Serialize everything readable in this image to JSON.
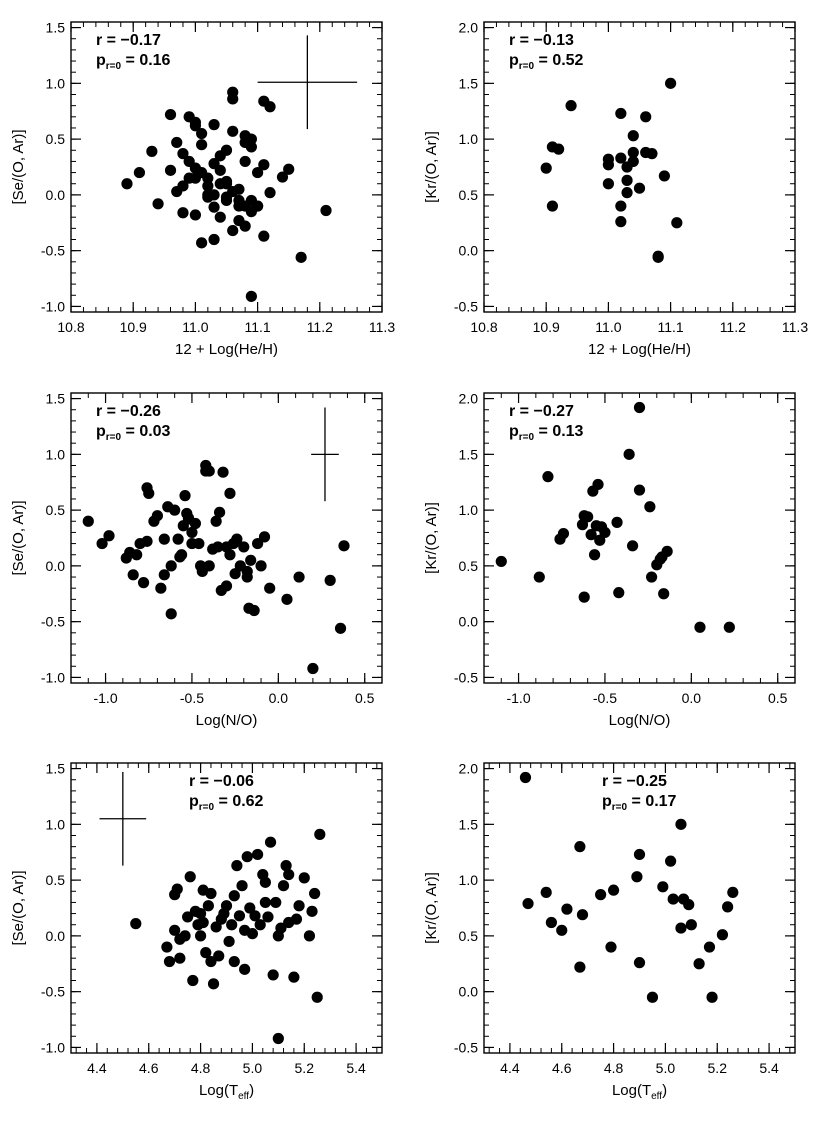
{
  "chart_data": [
    {
      "type": "scatter",
      "id": "se-vs-he",
      "xlabel": "12 + Log(He/H)",
      "ylabel": "[Se/(O, Ar)]",
      "xlim": [
        10.8,
        11.3
      ],
      "ylim": [
        -1.05,
        1.55
      ],
      "xticks": [
        "10.8",
        "10.9",
        "11.0",
        "11.1",
        "11.2",
        "11.3"
      ],
      "yticks": [
        "-1.0",
        "-0.5",
        "0.0",
        "0.5",
        "1.0",
        "1.5"
      ],
      "stats": {
        "r_label": "r = ",
        "r_value": "−0.17",
        "p_label": "p",
        "p_sub": "r=0",
        "p_value": " = 0.16",
        "position": "top-left"
      },
      "errorbar": {
        "x": 11.18,
        "y": 1.01,
        "xerr": 0.08,
        "yerr": 0.42
      },
      "x": [
        10.89,
        10.91,
        10.93,
        10.94,
        10.96,
        10.96,
        10.97,
        10.98,
        10.99,
        11.0,
        11.0,
        11.01,
        11.02,
        11.03,
        11.04,
        11.05,
        11.06,
        11.06,
        11.07,
        11.08,
        11.08,
        11.09,
        11.1,
        11.11,
        11.12,
        11.15,
        10.99,
        11.0,
        11.01,
        11.02,
        11.03,
        11.04,
        11.05,
        11.06,
        11.07,
        11.08,
        11.09,
        11.1,
        11.11,
        10.97,
        10.98,
        10.99,
        11.0,
        11.01,
        11.02,
        11.03,
        11.04,
        11.05,
        11.06,
        11.07,
        11.08,
        11.09,
        11.1,
        11.02,
        11.03,
        11.04,
        11.05,
        11.06,
        11.07,
        11.08,
        11.09,
        11.11,
        11.14,
        11.17,
        11.21,
        11.09,
        11.01,
        11.03,
        11.05,
        10.98,
        11.12,
        11.0
      ],
      "y": [
        0.1,
        0.2,
        0.39,
        -0.08,
        0.72,
        0.22,
        0.47,
        0.37,
        0.3,
        0.24,
        0.62,
        0.55,
        0.08,
        0.63,
        0.35,
        0.1,
        0.92,
        0.57,
        0.05,
        0.53,
        0.3,
        0.5,
        -0.1,
        0.84,
        0.79,
        0.23,
        0.7,
        0.65,
        0.45,
        0.15,
        0.0,
        0.1,
        0.4,
        0.86,
        -0.05,
        0.47,
        -0.05,
        0.2,
        0.27,
        0.03,
        0.08,
        0.15,
        -0.18,
        0.2,
        -0.02,
        -0.11,
        -0.2,
        0.12,
        0.03,
        -0.23,
        -0.1,
        0.43,
        -0.1,
        0.0,
        0.28,
        0.22,
        -0.05,
        -0.32,
        -0.1,
        -0.28,
        -0.15,
        -0.37,
        0.16,
        -0.56,
        -0.14,
        -0.91,
        -0.43,
        -0.4,
        -0.02,
        -0.16,
        0.02,
        0.15
      ]
    },
    {
      "type": "scatter",
      "id": "kr-vs-he",
      "xlabel": "12 + Log(He/H)",
      "ylabel": "[Kr/(O, Ar)]",
      "xlim": [
        10.8,
        11.3
      ],
      "ylim": [
        -0.55,
        2.05
      ],
      "xticks": [
        "10.8",
        "10.9",
        "11.0",
        "11.1",
        "11.2",
        "11.3"
      ],
      "yticks": [
        "-0.5",
        "0.0",
        "0.5",
        "1.0",
        "1.5",
        "2.0"
      ],
      "stats": {
        "r_label": "r = ",
        "r_value": "−0.13",
        "p_label": "p",
        "p_sub": "r=0",
        "p_value": " = 0.52",
        "position": "top-left"
      },
      "x": [
        10.9,
        10.91,
        10.92,
        10.91,
        10.94,
        11.0,
        11.0,
        11.0,
        11.02,
        11.02,
        11.02,
        11.03,
        11.03,
        11.04,
        11.04,
        11.04,
        11.05,
        11.06,
        11.06,
        11.07,
        11.08,
        11.08,
        11.09,
        11.1,
        11.11,
        11.02,
        11.03
      ],
      "y": [
        0.74,
        0.93,
        0.91,
        0.4,
        1.3,
        0.82,
        0.77,
        0.6,
        1.23,
        0.83,
        0.4,
        0.63,
        0.52,
        0.88,
        1.03,
        0.8,
        0.56,
        0.88,
        1.2,
        0.87,
        -0.06,
        -0.05,
        0.67,
        1.5,
        0.25,
        0.26,
        0.75
      ]
    },
    {
      "type": "scatter",
      "id": "se-vs-no",
      "xlabel": "Log(N/O)",
      "ylabel": "[Se/(O, Ar)]",
      "xlim": [
        -1.2,
        0.6
      ],
      "ylim": [
        -1.05,
        1.55
      ],
      "xticks": [
        "-1.0",
        "-0.5",
        "0.0",
        "0.5"
      ],
      "yticks": [
        "-1.0",
        "-0.5",
        "0.0",
        "0.5",
        "1.0",
        "1.5"
      ],
      "stats": {
        "r_label": "r = ",
        "r_value": "−0.26",
        "p_label": "p",
        "p_sub": "r=0",
        "p_value": " = 0.03",
        "position": "top-left"
      },
      "errorbar": {
        "x": 0.27,
        "y": 1.0,
        "xerr": 0.08,
        "yerr": 0.42
      },
      "x": [
        -1.1,
        -1.02,
        -0.98,
        -0.88,
        -0.86,
        -0.84,
        -0.82,
        -0.8,
        -0.78,
        -0.76,
        -0.75,
        -0.72,
        -0.7,
        -0.68,
        -0.66,
        -0.64,
        -0.62,
        -0.6,
        -0.58,
        -0.57,
        -0.55,
        -0.54,
        -0.53,
        -0.52,
        -0.5,
        -0.48,
        -0.46,
        -0.44,
        -0.42,
        -0.4,
        -0.38,
        -0.36,
        -0.34,
        -0.33,
        -0.32,
        -0.3,
        -0.28,
        -0.26,
        -0.24,
        -0.22,
        -0.2,
        -0.18,
        -0.17,
        -0.16,
        -0.14,
        -0.12,
        -0.1,
        -0.08,
        -0.05,
        0.05,
        0.12,
        0.2,
        0.3,
        0.36,
        0.38,
        -0.62,
        -0.56,
        -0.52,
        -0.45,
        -0.35,
        -0.3,
        -0.25,
        -0.18,
        -0.66,
        -0.5,
        -0.42,
        -0.28,
        -0.4,
        -0.76
      ],
      "y": [
        0.4,
        0.2,
        0.27,
        0.07,
        0.12,
        -0.08,
        0.1,
        0.2,
        -0.15,
        0.7,
        0.65,
        0.4,
        0.45,
        -0.2,
        0.24,
        0.53,
        0.0,
        0.5,
        0.24,
        0.08,
        0.36,
        0.63,
        0.47,
        0.42,
        0.2,
        0.38,
        0.2,
        -0.05,
        0.9,
        0.85,
        0.15,
        0.4,
        0.48,
        -0.22,
        0.84,
        -0.18,
        0.65,
        0.2,
        0.24,
        0.0,
        0.17,
        -0.05,
        -0.38,
        0.05,
        -0.4,
        0.2,
        0.0,
        0.26,
        -0.2,
        -0.3,
        -0.1,
        -0.92,
        -0.13,
        -0.56,
        0.18,
        -0.43,
        0.1,
        0.43,
        0.0,
        0.17,
        0.17,
        -0.07,
        -0.1,
        -0.08,
        0.3,
        0.85,
        0.1,
        0.0,
        0.22
      ]
    },
    {
      "type": "scatter",
      "id": "kr-vs-no",
      "xlabel": "Log(N/O)",
      "ylabel": "[Kr/(O, Ar)]",
      "xlim": [
        -1.2,
        0.6
      ],
      "ylim": [
        -0.55,
        2.05
      ],
      "xticks": [
        "-1.0",
        "-0.5",
        "0.0",
        "0.5"
      ],
      "yticks": [
        "-0.5",
        "0.0",
        "0.5",
        "1.0",
        "1.5",
        "2.0"
      ],
      "stats": {
        "r_label": "r = ",
        "r_value": "−0.27",
        "p_label": "p",
        "p_sub": "r=0",
        "p_value": " = 0.13",
        "position": "top-left"
      },
      "x": [
        -1.1,
        -0.88,
        -0.83,
        -0.76,
        -0.74,
        -0.63,
        -0.62,
        -0.6,
        -0.58,
        -0.57,
        -0.55,
        -0.54,
        -0.53,
        -0.52,
        -0.5,
        -0.43,
        -0.42,
        -0.36,
        -0.34,
        -0.3,
        -0.3,
        -0.24,
        -0.23,
        -0.2,
        -0.18,
        -0.16,
        -0.14,
        -0.17,
        0.05,
        0.22,
        -0.62,
        -0.56
      ],
      "y": [
        0.54,
        0.4,
        1.3,
        0.74,
        0.79,
        0.87,
        0.22,
        0.94,
        0.78,
        1.17,
        0.86,
        1.23,
        0.73,
        0.85,
        0.8,
        0.89,
        0.26,
        1.5,
        0.68,
        1.18,
        1.92,
        1.03,
        0.4,
        0.51,
        0.56,
        0.25,
        0.63,
        0.58,
        -0.05,
        -0.05,
        0.95,
        0.6
      ]
    },
    {
      "type": "scatter",
      "id": "se-vs-teff",
      "xlabel": "Log(T",
      "xlabel_sub": "eff",
      "xlabel_end": ")",
      "ylabel": "[Se/(O, Ar)]",
      "xlim": [
        4.3,
        5.5
      ],
      "ylim": [
        -1.05,
        1.55
      ],
      "xticks": [
        "4.4",
        "4.6",
        "4.8",
        "5.0",
        "5.2",
        "5.4"
      ],
      "yticks": [
        "-1.0",
        "-0.5",
        "0.0",
        "0.5",
        "1.0",
        "1.5"
      ],
      "stats": {
        "r_label": "r = ",
        "r_value": "−0.06",
        "p_label": "p",
        "p_sub": "r=0",
        "p_value": " = 0.62",
        "position": "top-center"
      },
      "errorbar": {
        "x": 4.5,
        "y": 1.05,
        "xerr": 0.09,
        "yerr": 0.42
      },
      "x": [
        4.55,
        4.67,
        4.68,
        4.7,
        4.7,
        4.71,
        4.72,
        4.74,
        4.75,
        4.76,
        4.77,
        4.78,
        4.79,
        4.8,
        4.8,
        4.81,
        4.82,
        4.83,
        4.84,
        4.85,
        4.86,
        4.87,
        4.88,
        4.89,
        4.9,
        4.91,
        4.92,
        4.93,
        4.94,
        4.95,
        4.96,
        4.97,
        4.98,
        4.99,
        5.0,
        5.01,
        5.02,
        5.03,
        5.04,
        5.05,
        5.06,
        5.07,
        5.08,
        5.09,
        5.1,
        5.11,
        5.12,
        5.13,
        5.14,
        5.16,
        5.17,
        5.18,
        5.2,
        5.22,
        5.23,
        5.24,
        5.25,
        5.26,
        4.72,
        4.81,
        4.84,
        4.93,
        4.97,
        5.05,
        5.1,
        5.14
      ],
      "y": [
        0.11,
        -0.1,
        -0.23,
        0.05,
        0.37,
        0.42,
        -0.2,
        0.0,
        0.17,
        0.53,
        -0.4,
        0.22,
        0.1,
        0.2,
        0.0,
        0.12,
        -0.15,
        0.27,
        0.38,
        -0.43,
        0.08,
        -0.18,
        0.15,
        0.2,
        0.27,
        -0.05,
        0.1,
        -0.23,
        0.63,
        0.18,
        0.45,
        -0.3,
        0.71,
        0.25,
        0.02,
        0.18,
        0.73,
        0.1,
        0.55,
        0.3,
        0.17,
        0.84,
        -0.35,
        0.3,
        0.0,
        0.07,
        0.45,
        0.63,
        0.55,
        -0.37,
        0.15,
        0.27,
        0.52,
        0.0,
        0.22,
        0.38,
        -0.55,
        0.91,
        -0.03,
        0.41,
        -0.23,
        0.36,
        0.05,
        0.48,
        -0.92,
        0.12
      ]
    },
    {
      "type": "scatter",
      "id": "kr-vs-teff",
      "xlabel": "Log(T",
      "xlabel_sub": "eff",
      "xlabel_end": ")",
      "ylabel": "[Kr/(O, Ar)]",
      "xlim": [
        4.3,
        5.5
      ],
      "ylim": [
        -0.55,
        2.05
      ],
      "xticks": [
        "4.4",
        "4.6",
        "4.8",
        "5.0",
        "5.2",
        "5.4"
      ],
      "yticks": [
        "-0.5",
        "0.0",
        "0.5",
        "1.0",
        "1.5",
        "2.0"
      ],
      "stats": {
        "r_label": "r = ",
        "r_value": "−0.25",
        "p_label": "p",
        "p_sub": "r=0",
        "p_value": " = 0.17",
        "position": "top-center"
      },
      "x": [
        4.46,
        4.47,
        4.54,
        4.56,
        4.6,
        4.62,
        4.67,
        4.68,
        4.67,
        4.75,
        4.79,
        4.8,
        4.89,
        4.9,
        4.9,
        4.95,
        4.99,
        5.02,
        5.03,
        5.06,
        5.06,
        5.07,
        5.09,
        5.1,
        5.13,
        5.17,
        5.18,
        5.22,
        5.24,
        5.26
      ],
      "y": [
        1.92,
        0.79,
        0.89,
        0.62,
        0.55,
        0.74,
        1.3,
        0.69,
        0.22,
        0.87,
        0.4,
        0.91,
        1.03,
        1.23,
        0.26,
        -0.05,
        0.94,
        1.17,
        0.83,
        1.5,
        0.57,
        0.83,
        0.78,
        0.6,
        0.25,
        0.4,
        -0.05,
        0.51,
        0.76,
        0.89
      ]
    }
  ]
}
